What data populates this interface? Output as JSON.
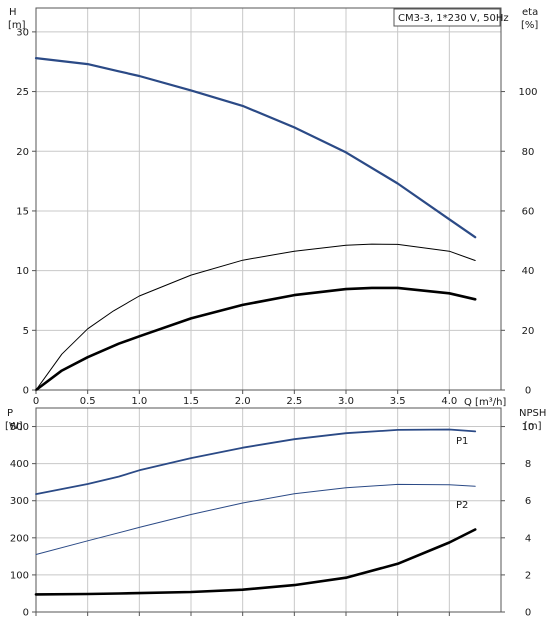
{
  "chart_data": [
    {
      "type": "line",
      "title": "CM3-3, 1*230 V, 50Hz",
      "xlabel": "Q [m³/h]",
      "x_ticks": [
        "0",
        "0.5",
        "1.0",
        "1.5",
        "2.0",
        "2.5",
        "3.0",
        "3.5",
        "4.0"
      ],
      "xlim": [
        0,
        4.5
      ],
      "left_axis": {
        "label_top": "H",
        "label_unit": "[m]",
        "ylim": [
          0,
          32
        ],
        "ticks": [
          "0",
          "5",
          "10",
          "15",
          "20",
          "25",
          "30"
        ],
        "tick_values": [
          0,
          5,
          10,
          15,
          20,
          25,
          30
        ]
      },
      "right_axis": {
        "label_top": "eta",
        "label_unit": "[%]",
        "ylim": [
          0,
          128
        ],
        "ticks": [
          "0",
          "20",
          "40",
          "60",
          "80",
          "100"
        ],
        "tick_values": [
          0,
          20,
          40,
          60,
          80,
          100
        ]
      },
      "grid": true,
      "series": [
        {
          "id": "H",
          "axis": "left",
          "color": "#2b4a86",
          "width": 2.2,
          "x": [
            0,
            0.5,
            0.8,
            1.0,
            1.5,
            2.0,
            2.5,
            3.0,
            3.5,
            4.0,
            4.25
          ],
          "y": [
            27.8,
            27.3,
            26.7,
            26.3,
            25.1,
            23.8,
            22.0,
            19.9,
            17.3,
            14.3,
            12.8
          ]
        },
        {
          "id": "eta_pump",
          "axis": "right",
          "color": "#000000",
          "width": 1.0,
          "x": [
            0,
            0.25,
            0.5,
            0.75,
            1.0,
            1.5,
            2.0,
            2.5,
            3.0,
            3.25,
            3.5,
            4.0,
            4.25
          ],
          "y": [
            0,
            12,
            20.5,
            26.5,
            31.5,
            38.5,
            43.5,
            46.5,
            48.5,
            48.9,
            48.8,
            46.5,
            43.4
          ]
        },
        {
          "id": "eta_total",
          "axis": "right",
          "color": "#000000",
          "width": 2.6,
          "x": [
            0,
            0.25,
            0.5,
            0.8,
            1.0,
            1.5,
            2.0,
            2.5,
            3.0,
            3.25,
            3.5,
            4.0,
            4.25
          ],
          "y": [
            0,
            6.5,
            11,
            15.5,
            18,
            24,
            28.5,
            31.8,
            33.8,
            34.2,
            34.2,
            32.4,
            30.4
          ]
        }
      ]
    },
    {
      "type": "line",
      "xlim": [
        0,
        4.5
      ],
      "x_ticks": [
        0,
        0.5,
        1,
        1.5,
        2,
        2.5,
        3,
        3.5,
        4
      ],
      "left_axis": {
        "label_top": "P",
        "label_unit": "[W]",
        "ylim": [
          0,
          550
        ],
        "ticks": [
          "0",
          "100",
          "200",
          "300",
          "400",
          "500"
        ],
        "tick_values": [
          0,
          100,
          200,
          300,
          400,
          500
        ]
      },
      "right_axis": {
        "label_top": "NPSH",
        "label_unit": "[m]",
        "ylim": [
          0,
          11
        ],
        "ticks": [
          "0",
          "2",
          "4",
          "6",
          "8",
          "10"
        ],
        "tick_values": [
          0,
          2,
          4,
          6,
          8,
          10
        ]
      },
      "grid": true,
      "series": [
        {
          "id": "P1",
          "name": "P1",
          "axis": "left",
          "color": "#2b4a86",
          "width": 1.8,
          "x": [
            0,
            0.5,
            0.8,
            1.0,
            1.5,
            2.0,
            2.5,
            3.0,
            3.5,
            4.0,
            4.25
          ],
          "y": [
            318,
            345,
            365,
            382,
            415,
            443,
            466,
            482,
            491,
            492,
            487
          ]
        },
        {
          "id": "P2",
          "name": "P2",
          "axis": "left",
          "color": "#2b4a86",
          "width": 1.0,
          "x": [
            0,
            0.5,
            1.0,
            1.5,
            2.0,
            2.5,
            3.0,
            3.5,
            4.0,
            4.25
          ],
          "y": [
            155,
            192,
            228,
            263,
            294,
            319,
            335,
            344,
            343,
            339
          ]
        },
        {
          "id": "NPSH",
          "axis": "right",
          "color": "#000000",
          "width": 2.6,
          "x": [
            0,
            0.5,
            0.8,
            1.0,
            1.5,
            2.0,
            2.5,
            3.0,
            3.5,
            4.0,
            4.25
          ],
          "y": [
            0.95,
            0.97,
            1.0,
            1.02,
            1.08,
            1.2,
            1.45,
            1.85,
            2.6,
            3.75,
            4.45
          ]
        }
      ]
    }
  ]
}
